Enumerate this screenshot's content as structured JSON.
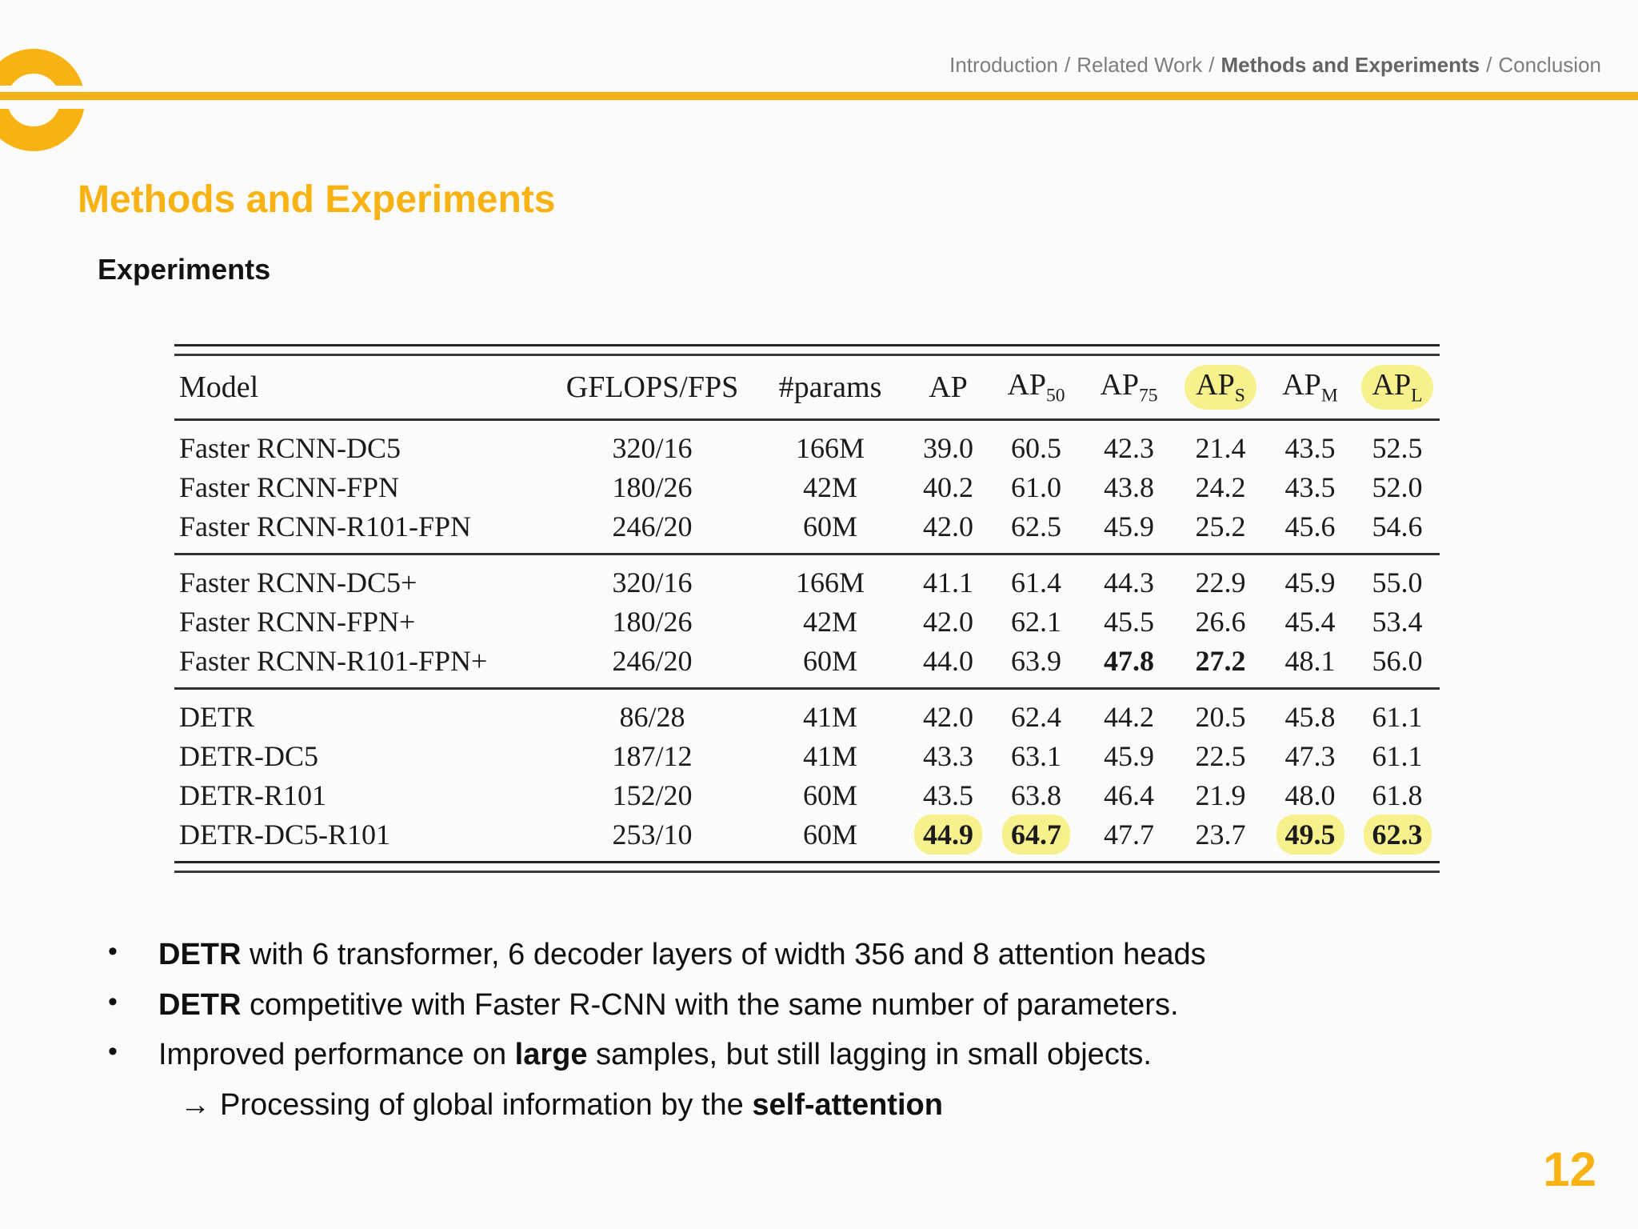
{
  "colors": {
    "accent_gold": "#F9B213",
    "breadcrumb_gray": "#7D7D7D",
    "highlight_yellow": "#F6F08D",
    "table_ink": "#1B1B1B"
  },
  "breadcrumb": {
    "separator": "/",
    "items": [
      {
        "label": "Introduction",
        "active": false
      },
      {
        "label": "Related Work",
        "active": false
      },
      {
        "label": "Methods and Experiments",
        "active": true
      },
      {
        "label": "Conclusion",
        "active": false
      }
    ]
  },
  "slide": {
    "title": "Methods and Experiments",
    "subtitle": "Experiments",
    "page_number": "12"
  },
  "bullet_glyph": "•",
  "chart_data": {
    "type": "table",
    "title": "",
    "columns": [
      {
        "label": "Model",
        "sub": "",
        "highlight": false
      },
      {
        "label": "GFLOPS/FPS",
        "sub": "",
        "highlight": false
      },
      {
        "label": "#params",
        "sub": "",
        "highlight": false
      },
      {
        "label": "AP",
        "sub": "",
        "highlight": false
      },
      {
        "label": "AP",
        "sub": "50",
        "highlight": false
      },
      {
        "label": "AP",
        "sub": "75",
        "highlight": false
      },
      {
        "label": "AP",
        "sub": "S",
        "highlight": true
      },
      {
        "label": "AP",
        "sub": "M",
        "highlight": false
      },
      {
        "label": "AP",
        "sub": "L",
        "highlight": true
      }
    ],
    "groups": [
      {
        "rows": [
          {
            "model": "Faster RCNN-DC5",
            "gflops_fps": "320/16",
            "params": "166M",
            "values": [
              {
                "v": "39.0"
              },
              {
                "v": "60.5"
              },
              {
                "v": "42.3"
              },
              {
                "v": "21.4"
              },
              {
                "v": "43.5"
              },
              {
                "v": "52.5"
              }
            ]
          },
          {
            "model": "Faster RCNN-FPN",
            "gflops_fps": "180/26",
            "params": "42M",
            "values": [
              {
                "v": "40.2"
              },
              {
                "v": "61.0"
              },
              {
                "v": "43.8"
              },
              {
                "v": "24.2"
              },
              {
                "v": "43.5"
              },
              {
                "v": "52.0"
              }
            ]
          },
          {
            "model": "Faster RCNN-R101-FPN",
            "gflops_fps": "246/20",
            "params": "60M",
            "values": [
              {
                "v": "42.0"
              },
              {
                "v": "62.5"
              },
              {
                "v": "45.9"
              },
              {
                "v": "25.2"
              },
              {
                "v": "45.6"
              },
              {
                "v": "54.6"
              }
            ]
          }
        ]
      },
      {
        "rows": [
          {
            "model": "Faster RCNN-DC5+",
            "gflops_fps": "320/16",
            "params": "166M",
            "values": [
              {
                "v": "41.1"
              },
              {
                "v": "61.4"
              },
              {
                "v": "44.3"
              },
              {
                "v": "22.9"
              },
              {
                "v": "45.9"
              },
              {
                "v": "55.0"
              }
            ]
          },
          {
            "model": "Faster RCNN-FPN+",
            "gflops_fps": "180/26",
            "params": "42M",
            "values": [
              {
                "v": "42.0"
              },
              {
                "v": "62.1"
              },
              {
                "v": "45.5"
              },
              {
                "v": "26.6"
              },
              {
                "v": "45.4"
              },
              {
                "v": "53.4"
              }
            ]
          },
          {
            "model": "Faster RCNN-R101-FPN+",
            "gflops_fps": "246/20",
            "params": "60M",
            "values": [
              {
                "v": "44.0"
              },
              {
                "v": "63.9"
              },
              {
                "v": "47.8",
                "b": true
              },
              {
                "v": "27.2",
                "b": true
              },
              {
                "v": "48.1"
              },
              {
                "v": "56.0"
              }
            ]
          }
        ]
      },
      {
        "rows": [
          {
            "model": "DETR",
            "gflops_fps": "86/28",
            "params": "41M",
            "values": [
              {
                "v": "42.0"
              },
              {
                "v": "62.4"
              },
              {
                "v": "44.2"
              },
              {
                "v": "20.5"
              },
              {
                "v": "45.8"
              },
              {
                "v": "61.1"
              }
            ]
          },
          {
            "model": "DETR-DC5",
            "gflops_fps": "187/12",
            "params": "41M",
            "values": [
              {
                "v": "43.3"
              },
              {
                "v": "63.1"
              },
              {
                "v": "45.9"
              },
              {
                "v": "22.5"
              },
              {
                "v": "47.3"
              },
              {
                "v": "61.1"
              }
            ]
          },
          {
            "model": "DETR-R101",
            "gflops_fps": "152/20",
            "params": "60M",
            "values": [
              {
                "v": "43.5"
              },
              {
                "v": "63.8"
              },
              {
                "v": "46.4"
              },
              {
                "v": "21.9"
              },
              {
                "v": "48.0"
              },
              {
                "v": "61.8"
              }
            ]
          },
          {
            "model": "DETR-DC5-R101",
            "gflops_fps": "253/10",
            "params": "60M",
            "values": [
              {
                "v": "44.9",
                "b": true,
                "h": true
              },
              {
                "v": "64.7",
                "b": true,
                "h": true
              },
              {
                "v": "47.7"
              },
              {
                "v": "23.7"
              },
              {
                "v": "49.5",
                "b": true,
                "h": true
              },
              {
                "v": "62.3",
                "b": true,
                "h": true
              }
            ]
          }
        ]
      }
    ]
  },
  "bullets": [
    {
      "segments": [
        {
          "t": "DETR",
          "b": true
        },
        {
          "t": " with 6 transformer, 6 decoder layers of width 356 and 8 attention heads",
          "b": false
        }
      ]
    },
    {
      "segments": [
        {
          "t": "DETR",
          "b": true
        },
        {
          "t": " competitive with Faster R-CNN with the same number of parameters.",
          "b": false
        }
      ]
    },
    {
      "segments": [
        {
          "t": "Improved performance on ",
          "b": false
        },
        {
          "t": "large",
          "b": true
        },
        {
          "t": " samples, but still lagging in small objects.",
          "b": false
        }
      ]
    }
  ],
  "arrow_note": {
    "glyph": "→",
    "segments": [
      {
        "t": "Processing of global information by the ",
        "b": false
      },
      {
        "t": "self-attention",
        "b": true
      }
    ]
  }
}
